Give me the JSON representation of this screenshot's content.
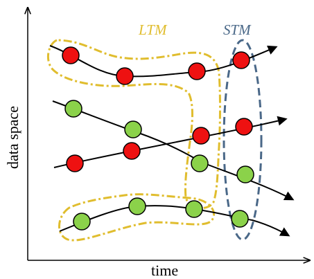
{
  "labels": {
    "ltm": "LTM",
    "stm": "STM",
    "x_axis": "time",
    "y_axis": "data space"
  },
  "colors": {
    "ltm": "#e0bd2e",
    "stm": "#4a6888",
    "red_node": "#ee1111",
    "green_node": "#8bd24a",
    "line": "#000000"
  },
  "trajectories": [
    {
      "name": "red-trajectory-top",
      "color": "red",
      "node_count": 4
    },
    {
      "name": "green-trajectory-descending",
      "color": "green",
      "node_count": 4
    },
    {
      "name": "red-trajectory-ascending",
      "color": "red",
      "node_count": 4
    },
    {
      "name": "green-trajectory-bottom",
      "color": "green",
      "node_count": 4
    }
  ]
}
